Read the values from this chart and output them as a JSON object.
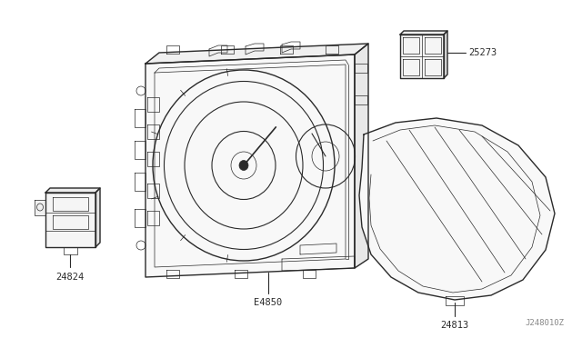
{
  "bg_color": "#ffffff",
  "line_color": "#2a2a2a",
  "label_color": "#2a2a2a",
  "diagram_id": "J248010Z",
  "figsize": [
    6.4,
    3.72
  ],
  "dpi": 100
}
